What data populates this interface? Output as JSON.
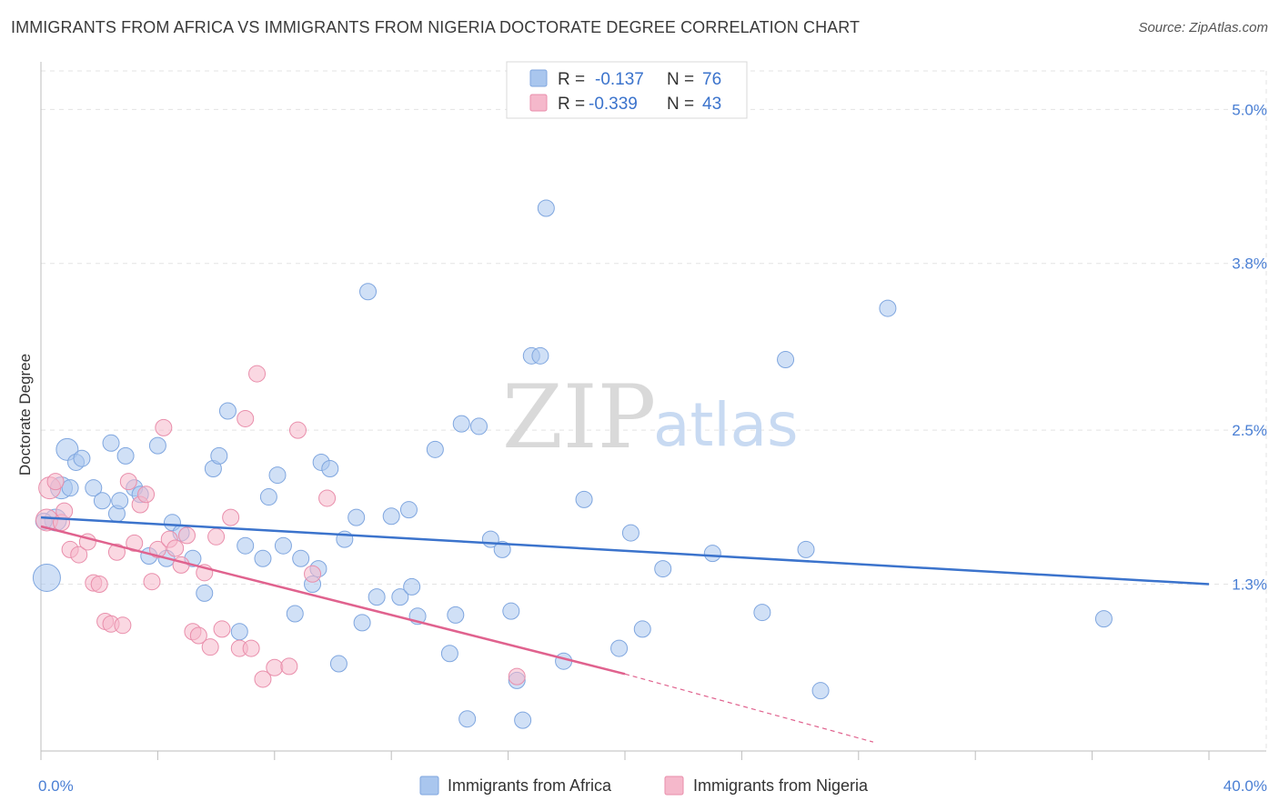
{
  "title": "IMMIGRANTS FROM AFRICA VS IMMIGRANTS FROM NIGERIA DOCTORATE DEGREE CORRELATION CHART",
  "source": "Source: ZipAtlas.com",
  "watermark": {
    "zip": "ZIP",
    "atlas": "atlas"
  },
  "legend_top": [
    {
      "r_label": "R =",
      "r_value": "-0.137",
      "n_label": "N =",
      "n_value": "76",
      "color": "#a9c6ee"
    },
    {
      "r_label": "R =",
      "r_value": "-0.339",
      "n_label": "N =",
      "n_value": "43",
      "color": "#f5b8cb"
    }
  ],
  "chart_data": {
    "type": "scatter",
    "title": "IMMIGRANTS FROM AFRICA VS IMMIGRANTS FROM NIGERIA DOCTORATE DEGREE CORRELATION CHART",
    "xlabel": "",
    "ylabel": "Doctorate Degree",
    "xlim": [
      0,
      40
    ],
    "ylim": [
      0,
      5.3
    ],
    "x_ticks": [
      0,
      4,
      8,
      12,
      16,
      20,
      24,
      28,
      32,
      36,
      40
    ],
    "x_tick_labels": {
      "0": "0.0%",
      "40": "40.0%"
    },
    "y_ticks": [
      1.3,
      2.5,
      3.8,
      5.0
    ],
    "y_tick_labels": [
      "1.3%",
      "2.5%",
      "3.8%",
      "5.0%"
    ],
    "grid": true,
    "legend_position": "top-center",
    "series": [
      {
        "name": "Immigrants from Africa",
        "color": "#a9c6ee",
        "stroke": "#7fa6df",
        "trend": {
          "x": [
            0,
            40
          ],
          "y": [
            1.82,
            1.3
          ],
          "color": "#3b73cc"
        },
        "points": [
          [
            0.2,
            1.35
          ],
          [
            0.5,
            1.8
          ],
          [
            0.7,
            2.05
          ],
          [
            0.9,
            2.35
          ],
          [
            1.2,
            2.25
          ],
          [
            1.4,
            2.28
          ],
          [
            1.8,
            2.05
          ],
          [
            2.1,
            1.95
          ],
          [
            2.4,
            2.4
          ],
          [
            2.6,
            1.85
          ],
          [
            2.9,
            2.3
          ],
          [
            3.2,
            2.05
          ],
          [
            3.4,
            2.0
          ],
          [
            3.7,
            1.52
          ],
          [
            4.0,
            2.38
          ],
          [
            4.3,
            1.5
          ],
          [
            4.5,
            1.78
          ],
          [
            4.8,
            1.7
          ],
          [
            5.2,
            1.5
          ],
          [
            5.6,
            1.23
          ],
          [
            5.9,
            2.2
          ],
          [
            6.1,
            2.3
          ],
          [
            6.4,
            2.65
          ],
          [
            6.8,
            0.93
          ],
          [
            7.0,
            1.6
          ],
          [
            7.6,
            1.5
          ],
          [
            7.8,
            1.98
          ],
          [
            8.1,
            2.15
          ],
          [
            8.3,
            1.6
          ],
          [
            8.7,
            1.07
          ],
          [
            8.9,
            1.5
          ],
          [
            9.3,
            1.3
          ],
          [
            9.5,
            1.42
          ],
          [
            9.6,
            2.25
          ],
          [
            9.9,
            2.2
          ],
          [
            10.2,
            0.68
          ],
          [
            10.4,
            1.65
          ],
          [
            10.8,
            1.82
          ],
          [
            11.0,
            1.0
          ],
          [
            11.2,
            3.58
          ],
          [
            11.5,
            1.2
          ],
          [
            12.0,
            1.83
          ],
          [
            12.3,
            1.2
          ],
          [
            12.6,
            1.88
          ],
          [
            12.7,
            1.28
          ],
          [
            12.9,
            1.05
          ],
          [
            13.5,
            2.35
          ],
          [
            14.0,
            0.76
          ],
          [
            14.2,
            1.06
          ],
          [
            14.4,
            2.55
          ],
          [
            14.6,
            0.25
          ],
          [
            15.0,
            2.53
          ],
          [
            15.4,
            1.65
          ],
          [
            15.8,
            1.57
          ],
          [
            16.1,
            1.09
          ],
          [
            16.3,
            0.55
          ],
          [
            16.5,
            0.24
          ],
          [
            16.8,
            3.08
          ],
          [
            17.1,
            3.08
          ],
          [
            17.3,
            4.23
          ],
          [
            17.9,
            0.7
          ],
          [
            18.6,
            1.96
          ],
          [
            19.8,
            0.8
          ],
          [
            20.2,
            1.7
          ],
          [
            20.6,
            0.95
          ],
          [
            21.3,
            1.42
          ],
          [
            23.0,
            1.54
          ],
          [
            24.7,
            1.08
          ],
          [
            25.5,
            3.05
          ],
          [
            26.2,
            1.57
          ],
          [
            26.7,
            0.47
          ],
          [
            29.0,
            3.45
          ],
          [
            36.4,
            1.03
          ],
          [
            0.1,
            1.79
          ],
          [
            1.0,
            2.05
          ],
          [
            2.7,
            1.95
          ]
        ]
      },
      {
        "name": "Immigrants from Nigeria",
        "color": "#f5b8cb",
        "stroke": "#e98eab",
        "trend": {
          "x": [
            0,
            20
          ],
          "y": [
            1.75,
            0.6
          ],
          "color": "#e0628e"
        },
        "trend_ext": {
          "x": [
            20,
            28.5
          ],
          "y": [
            0.6,
            0.07
          ]
        },
        "points": [
          [
            0.2,
            1.8
          ],
          [
            0.3,
            2.05
          ],
          [
            0.5,
            2.1
          ],
          [
            0.7,
            1.78
          ],
          [
            0.8,
            1.87
          ],
          [
            1.0,
            1.57
          ],
          [
            1.3,
            1.53
          ],
          [
            1.6,
            1.63
          ],
          [
            1.8,
            1.31
          ],
          [
            2.0,
            1.3
          ],
          [
            2.2,
            1.01
          ],
          [
            2.4,
            0.99
          ],
          [
            2.6,
            1.55
          ],
          [
            2.8,
            0.98
          ],
          [
            3.0,
            2.1
          ],
          [
            3.2,
            1.62
          ],
          [
            3.4,
            1.92
          ],
          [
            3.6,
            2.0
          ],
          [
            3.8,
            1.32
          ],
          [
            4.0,
            1.57
          ],
          [
            4.2,
            2.52
          ],
          [
            4.4,
            1.65
          ],
          [
            4.6,
            1.58
          ],
          [
            4.8,
            1.45
          ],
          [
            5.0,
            1.68
          ],
          [
            5.2,
            0.93
          ],
          [
            5.4,
            0.9
          ],
          [
            5.6,
            1.39
          ],
          [
            5.8,
            0.81
          ],
          [
            6.0,
            1.67
          ],
          [
            6.2,
            0.95
          ],
          [
            6.5,
            1.82
          ],
          [
            6.8,
            0.8
          ],
          [
            7.0,
            2.59
          ],
          [
            7.2,
            0.8
          ],
          [
            7.4,
            2.94
          ],
          [
            7.6,
            0.56
          ],
          [
            8.0,
            0.65
          ],
          [
            8.5,
            0.66
          ],
          [
            8.8,
            2.5
          ],
          [
            9.3,
            1.38
          ],
          [
            9.8,
            1.97
          ],
          [
            16.3,
            0.58
          ]
        ]
      }
    ]
  },
  "bottom_legend": [
    {
      "label": "Immigrants from Africa"
    },
    {
      "label": "Immigrants from Nigeria"
    }
  ]
}
